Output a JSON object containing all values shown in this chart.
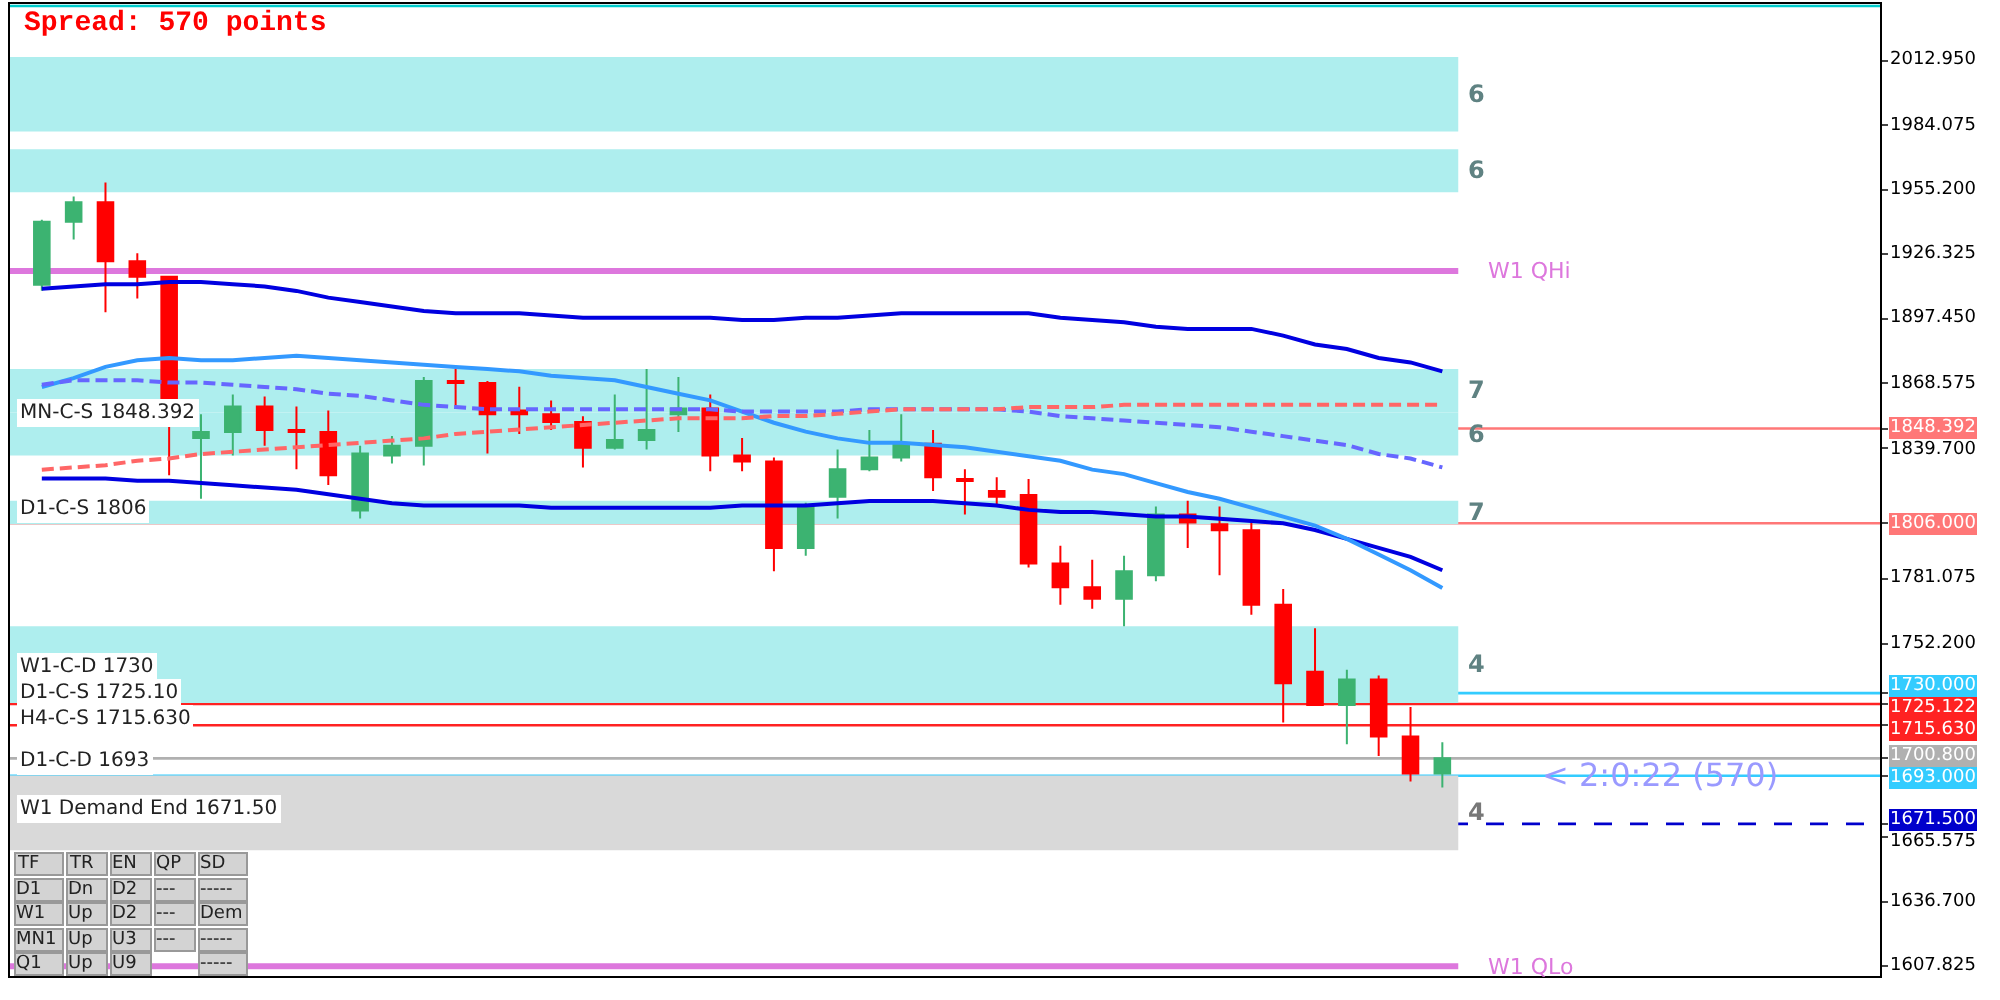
{
  "chart_data": {
    "type": "candlestick",
    "categories": [
      null,
      null,
      null,
      null,
      null,
      null,
      null,
      null,
      null,
      null,
      null,
      null,
      null,
      null,
      null,
      null,
      null,
      null,
      null,
      null,
      null,
      null,
      null,
      null,
      null,
      null,
      null,
      null,
      null,
      null,
      null,
      null,
      null,
      null,
      null,
      null,
      null,
      null,
      null,
      null,
      null,
      null,
      null,
      null,
      null
    ],
    "ohlc": [
      [
        1912.8,
        1941.8,
        1910.1,
        1940.9
      ],
      [
        1940.9,
        1952.3,
        1933.0,
        1949.7
      ],
      [
        1949.7,
        1958.5,
        1900.5,
        1923.3
      ],
      [
        1923.3,
        1926.8,
        1906.6,
        1916.3
      ],
      [
        1916.3,
        1916.3,
        1827.5,
        1849.5
      ],
      [
        1844.2,
        1854.8,
        1817.0,
        1846.9
      ],
      [
        1846.9,
        1863.6,
        1836.3,
        1858.3
      ],
      [
        1858.3,
        1862.7,
        1840.7,
        1847.7
      ],
      [
        1847.7,
        1858.3,
        1830.2,
        1846.9
      ],
      [
        1846.9,
        1856.5,
        1823.1,
        1827.5
      ],
      [
        1811.7,
        1840.7,
        1808.2,
        1837.2
      ],
      [
        1836.3,
        1845.1,
        1832.8,
        1840.7
      ],
      [
        1840.7,
        1871.5,
        1831.9,
        1869.7
      ],
      [
        1869.7,
        1875.0,
        1858.3,
        1868.8
      ],
      [
        1868.8,
        1869.7,
        1837.2,
        1854.8
      ],
      [
        1856.5,
        1867.1,
        1846.0,
        1854.8
      ],
      [
        1854.8,
        1860.9,
        1847.7,
        1851.3
      ],
      [
        1851.3,
        1853.9,
        1831.0,
        1839.8
      ],
      [
        1839.8,
        1863.6,
        1839.0,
        1843.3
      ],
      [
        1843.3,
        1875.0,
        1839.0,
        1847.7
      ],
      [
        1854.8,
        1871.5,
        1846.9,
        1857.4
      ],
      [
        1857.4,
        1863.6,
        1829.3,
        1836.3
      ],
      [
        1836.3,
        1844.2,
        1829.3,
        1833.7
      ],
      [
        1833.7,
        1835.4,
        1784.5,
        1795.0
      ],
      [
        1795.0,
        1815.2,
        1791.5,
        1813.5
      ],
      [
        1817.9,
        1839.0,
        1808.2,
        1830.2
      ],
      [
        1830.2,
        1847.7,
        1829.3,
        1835.4
      ],
      [
        1835.4,
        1854.8,
        1833.7,
        1841.6
      ],
      [
        1841.6,
        1847.7,
        1820.5,
        1826.6
      ],
      [
        1825.8,
        1830.2,
        1809.9,
        1824.9
      ],
      [
        1820.5,
        1826.6,
        1813.5,
        1817.9
      ],
      [
        1818.7,
        1825.8,
        1786.2,
        1788.0
      ],
      [
        1788.0,
        1795.9,
        1769.5,
        1777.4
      ],
      [
        1777.4,
        1789.7,
        1767.8,
        1772.2
      ],
      [
        1772.2,
        1791.5,
        1759.9,
        1784.5
      ],
      [
        1782.7,
        1813.5,
        1780.1,
        1809.9
      ],
      [
        1809.9,
        1816.1,
        1795.0,
        1806.4
      ],
      [
        1805.6,
        1813.5,
        1782.7,
        1802.9
      ],
      [
        1802.9,
        1806.4,
        1765.1,
        1769.5
      ],
      [
        1769.5,
        1776.6,
        1716.8,
        1734.4
      ],
      [
        1739.6,
        1759.0,
        1724.7,
        1724.7
      ],
      [
        1724.7,
        1740.5,
        1707.1,
        1736.1
      ],
      [
        1736.1,
        1737.9,
        1701.9,
        1710.6
      ],
      [
        1710.6,
        1723.8,
        1690.4,
        1694.0
      ],
      [
        1694.0,
        1708.0,
        1687.8,
        1700.8
      ]
    ],
    "colors": [
      "#3cb371",
      "#3cb371",
      "#ff0000",
      "#ff0000",
      "#ff0000",
      "#3cb371",
      "#3cb371",
      "#ff0000",
      "#ff0000",
      "#ff0000",
      "#3cb371",
      "#3cb371",
      "#3cb371",
      "#ff0000",
      "#ff0000",
      "#ff0000",
      "#ff0000",
      "#ff0000",
      "#3cb371",
      "#3cb371",
      "#3cb371",
      "#ff0000",
      "#ff0000",
      "#ff0000",
      "#3cb371",
      "#3cb371",
      "#3cb371",
      "#3cb371",
      "#ff0000",
      "#ff0000",
      "#ff0000",
      "#ff0000",
      "#ff0000",
      "#ff0000",
      "#3cb371",
      "#3cb371",
      "#ff0000",
      "#ff0000",
      "#ff0000",
      "#ff0000",
      "#ff0000",
      "#3cb371",
      "#ff0000",
      "#ff0000",
      "#3cb371"
    ],
    "series": [
      {
        "type": "line",
        "color": "#0000e0",
        "values": [
          1911,
          1912,
          1913,
          1913,
          1914,
          1914,
          1913,
          1912,
          1910,
          1907,
          1905,
          1903,
          1901,
          1900,
          1900,
          1900,
          1899,
          1898,
          1898,
          1898,
          1898,
          1898,
          1897,
          1897,
          1898,
          1898,
          1899,
          1900,
          1900,
          1900,
          1900,
          1900,
          1898,
          1897,
          1896,
          1894,
          1893,
          1893,
          1893,
          1890,
          1886,
          1884,
          1880,
          1878,
          1874
        ]
      },
      {
        "type": "line",
        "color": "#0000e0",
        "values": [
          1826,
          1826,
          1826,
          1825,
          1825,
          1824,
          1823,
          1822,
          1821,
          1819,
          1817,
          1815,
          1814,
          1814,
          1814,
          1814,
          1813,
          1813,
          1813,
          1813,
          1813,
          1813,
          1814,
          1814,
          1814,
          1815,
          1816,
          1816,
          1816,
          1815,
          1814,
          1812,
          1811,
          1811,
          1810,
          1809,
          1809,
          1808,
          1807,
          1806,
          1803,
          1799,
          1795,
          1791,
          1785
        ]
      },
      {
        "type": "line",
        "color": "#3399ff",
        "values": [
          1867,
          1871,
          1876,
          1879,
          1880,
          1879,
          1879,
          1880,
          1881,
          1880,
          1879,
          1878,
          1877,
          1876,
          1875,
          1874,
          1872,
          1871,
          1870,
          1867,
          1864,
          1861,
          1856,
          1851,
          1847,
          1844,
          1842,
          1842,
          1841,
          1840,
          1838,
          1836,
          1834,
          1830,
          1828,
          1824,
          1820,
          1817,
          1813,
          1809,
          1805,
          1799,
          1792,
          1785,
          1777
        ]
      },
      {
        "type": "line",
        "color": "#6666ff",
        "line_style": "dashed",
        "values": [
          1868,
          1870,
          1870,
          1870,
          1869,
          1869,
          1868,
          1867,
          1866,
          1864,
          1863,
          1861,
          1859,
          1858,
          1857,
          1857,
          1857,
          1857,
          1857,
          1857,
          1857,
          1857,
          1856,
          1856,
          1856,
          1856,
          1857,
          1857,
          1857,
          1857,
          1857,
          1856,
          1854,
          1853,
          1852,
          1851,
          1850,
          1849,
          1847,
          1845,
          1843,
          1841,
          1837,
          1835,
          1831
        ]
      },
      {
        "type": "line",
        "color": "#ff6666",
        "line_style": "dashed",
        "values": [
          1830,
          1831,
          1832,
          1834,
          1835,
          1837,
          1838,
          1839,
          1840,
          1841,
          1842,
          1843,
          1844,
          1846,
          1847,
          1848,
          1849,
          1850,
          1851,
          1852,
          1853,
          1853,
          1853,
          1854,
          1854,
          1855,
          1856,
          1857,
          1857,
          1857,
          1857,
          1858,
          1858,
          1858,
          1859,
          1859,
          1859,
          1859,
          1859,
          1859,
          1859,
          1859,
          1859,
          1859,
          1859
        ]
      }
    ],
    "ylim": [
      1603.4,
      2038.4
    ],
    "yticks": [
      {
        "value": 2012.95,
        "label": "2012.950"
      },
      1984.075,
      {
        "value": 1955.2,
        "label": "1955.200"
      },
      1926.325,
      {
        "value": 1897.45,
        "label": "1897.450"
      },
      1868.575,
      {
        "value": 1839.7,
        "label": "1839.700"
      },
      1781.075,
      {
        "value": 1752.2,
        "label": "1752.200"
      },
      1665.575,
      {
        "value": 1636.7,
        "label": "1636.700"
      },
      1607.825,
      1848.392,
      {
        "value": 1806,
        "label": "1806.000"
      },
      {
        "value": 1730,
        "label": "1730.000"
      },
      1725.122,
      {
        "value": 1715.63,
        "label": "1715.630"
      },
      {
        "value": 1700.8,
        "label": "1700.800"
      },
      {
        "value": 1693,
        "label": "1693.000"
      },
      {
        "value": 1671.5,
        "label": "1671.500"
      }
    ],
    "tick_labels": "y",
    "bands": [
      {
        "axis": "y",
        "from": 1981.3,
        "to": 2014.7,
        "label": "6",
        "color": "#aeeeee"
      },
      {
        "axis": "y",
        "from": 1954.1,
        "to": 1973.4,
        "label": "6",
        "color": "#aeeeee"
      },
      {
        "axis": "y",
        "from": 1855.6,
        "to": 1875.0,
        "label": "7",
        "color": "#aeeeee"
      },
      {
        "axis": "y",
        "from": 1836.3,
        "to": 1855.6,
        "label": "6",
        "color": "#aeeeee"
      },
      {
        "axis": "y",
        "from": 1805.6,
        "to": 1816.1,
        "label": "7",
        "color": "#aeeeee"
      },
      {
        "axis": "y",
        "from": 1725.6,
        "to": 1759.9,
        "label": "4",
        "color": "#aeeeee"
      },
      {
        "axis": "y",
        "from": 1659.7,
        "to": 1693.1,
        "label": "4",
        "color": "#d9d9d9"
      }
    ],
    "ref_lines": [
      {
        "axis": "y",
        "value": 2037.5,
        "color": "#00cccc"
      },
      {
        "axis": "y",
        "value": 1918.9,
        "label": "W1 QHi",
        "color": "#dd77dd"
      },
      {
        "axis": "y",
        "value": 1848.392,
        "label": "MN-C-S 1848.392",
        "color": "#ff7777"
      },
      {
        "axis": "y",
        "value": 1806,
        "label": "D1-C-S 1806",
        "color": "#ff7777"
      },
      {
        "axis": "y",
        "value": 1730,
        "label": "W1-C-D 1730",
        "color": "#33ccff"
      },
      {
        "axis": "y",
        "value": 1725.122,
        "label": "D1-C-S 1725.10",
        "color": "#ff2222"
      },
      {
        "axis": "y",
        "value": 1715.63,
        "label": "H4-C-S 1715.630",
        "color": "#ff2222"
      },
      {
        "axis": "y",
        "value": 1700.8,
        "color": "#b0b0b0"
      },
      {
        "axis": "y",
        "value": 1693,
        "label": "D1-C-D 1693",
        "color": "#33ccff"
      },
      {
        "axis": "y",
        "value": 1671.5,
        "label": "W1 Demand End 1671.50",
        "color": "#0000cc",
        "line_style": "dashed"
      },
      {
        "axis": "y",
        "value": 1607.8,
        "label": "W1 QLo",
        "color": "#dd77dd"
      }
    ],
    "annotations": [
      "Spread: 570 points",
      {
        "text": "< 2:0:22 (570)",
        "y": 1693
      },
      "TF\tTR\tEN\tQP\tSD\nD1\tDn\tD2\t---\t-----\nW1\tUp\tD2\t---\tDem\nMN1\tUp\tU3\t---\t-----\nQ1\tUp\tU9\t\t-----"
    ]
  }
}
